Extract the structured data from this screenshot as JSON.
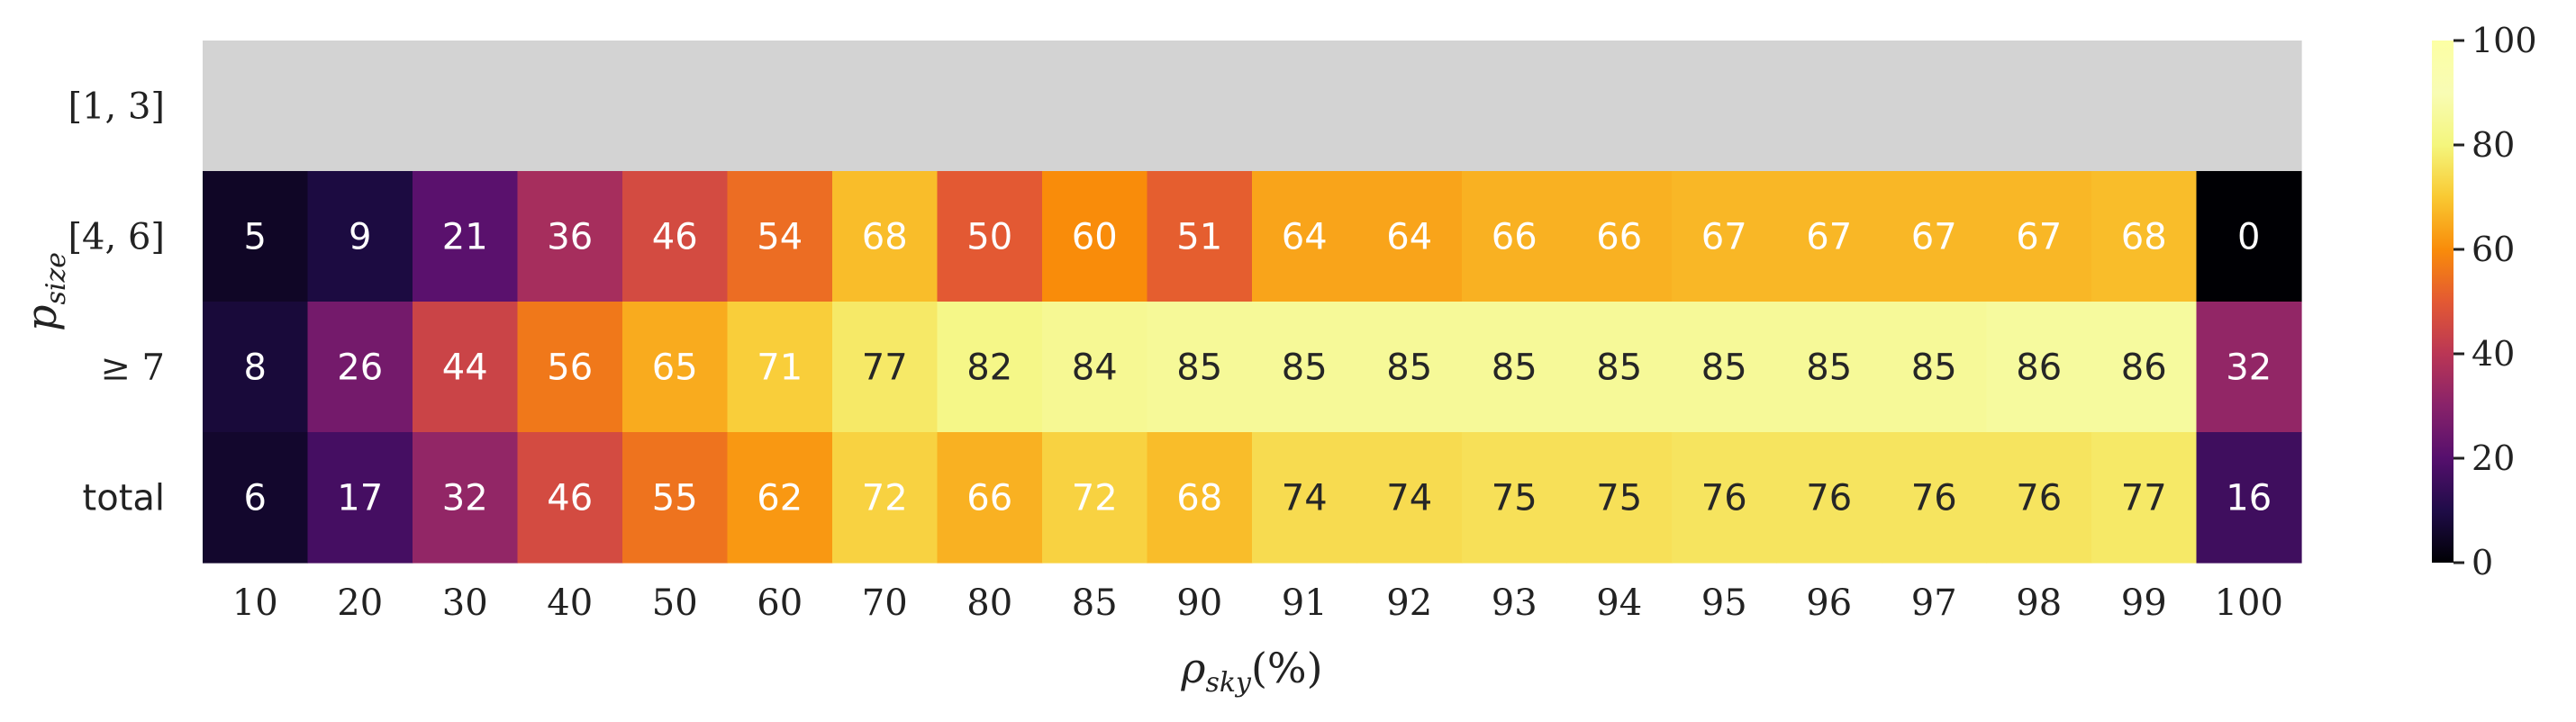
{
  "chart_data": {
    "type": "heatmap",
    "colormap": "inferno",
    "vmin": 0,
    "vmax": 100,
    "missing_color": "#d3d3d3",
    "x_categories": [
      "10",
      "20",
      "30",
      "40",
      "50",
      "60",
      "70",
      "80",
      "85",
      "90",
      "91",
      "92",
      "93",
      "94",
      "95",
      "96",
      "97",
      "98",
      "99",
      "100"
    ],
    "y_categories": [
      "[1, 3]",
      "[4, 6]",
      "≥ 7",
      "total"
    ],
    "values": [
      [
        null,
        null,
        null,
        null,
        null,
        null,
        null,
        null,
        null,
        null,
        null,
        null,
        null,
        null,
        null,
        null,
        null,
        null,
        null,
        null
      ],
      [
        5,
        9,
        21,
        36,
        46,
        54,
        68,
        50,
        60,
        51,
        64,
        64,
        66,
        66,
        67,
        67,
        67,
        67,
        68,
        0
      ],
      [
        8,
        26,
        44,
        56,
        65,
        71,
        77,
        82,
        84,
        85,
        85,
        85,
        85,
        85,
        85,
        85,
        85,
        86,
        86,
        32
      ],
      [
        6,
        17,
        32,
        46,
        55,
        62,
        72,
        66,
        72,
        68,
        74,
        74,
        75,
        75,
        76,
        76,
        76,
        76,
        77,
        16
      ]
    ],
    "xlabel_main": "ρ",
    "xlabel_sub": "sky",
    "xlabel_tail": "(%)",
    "ylabel_main": "p",
    "ylabel_sub": "size",
    "colorbar_ticks": [
      "0",
      "20",
      "40",
      "60",
      "80",
      "100"
    ]
  }
}
